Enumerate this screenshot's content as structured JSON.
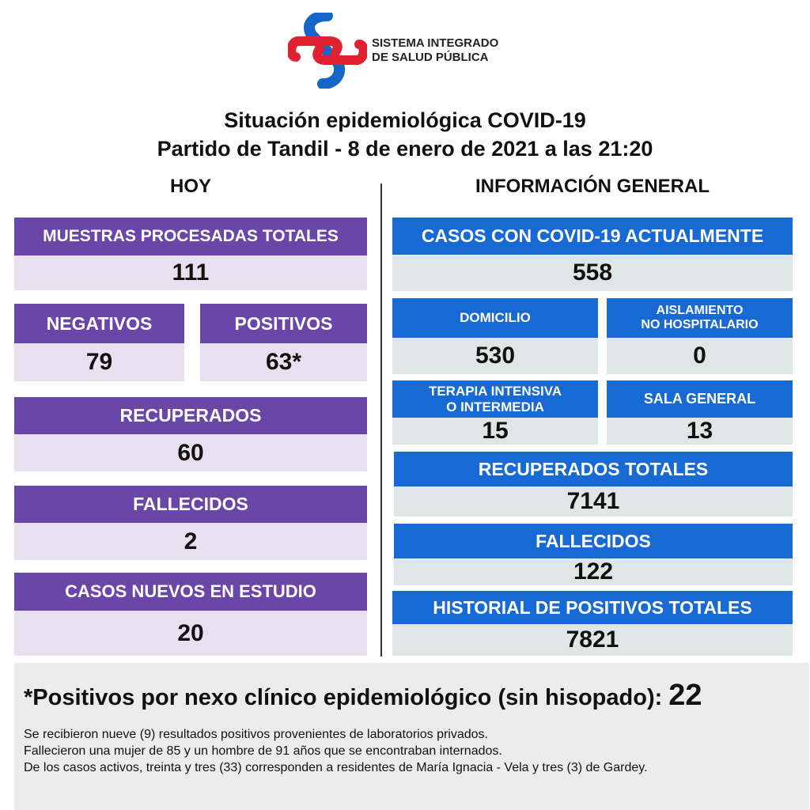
{
  "header": {
    "org_line1": "SISTEMA INTEGRADO",
    "org_line2": "DE SALUD PÚBLICA",
    "title_line1": "Situación epidemiológica COVID-19",
    "title_line2": "Partido de Tandil - 8 de enero de 2021 a las 21:20"
  },
  "colors": {
    "purple": "#6a46a8",
    "blue": "#1769d3",
    "logo_blue": "#1466c8",
    "logo_red": "#e0212f"
  },
  "hoy": {
    "heading": "HOY",
    "muestras": {
      "label": "MUESTRAS PROCESADAS TOTALES",
      "value": "111"
    },
    "negativos": {
      "label": "NEGATIVOS",
      "value": "79"
    },
    "positivos": {
      "label": "POSITIVOS",
      "value": "63*"
    },
    "recuperados": {
      "label": "RECUPERADOS",
      "value": "60"
    },
    "fallecidos": {
      "label": "FALLECIDOS",
      "value": "2"
    },
    "nuevos": {
      "label": "CASOS NUEVOS EN ESTUDIO",
      "value": "20"
    }
  },
  "general": {
    "heading": "INFORMACIÓN GENERAL",
    "actuales": {
      "label": "CASOS CON COVID-19 ACTUALMENTE",
      "value": "558"
    },
    "domicilio": {
      "label": "DOMICILIO",
      "value": "530"
    },
    "aislamiento": {
      "label_line1": "AISLAMIENTO",
      "label_line2": "NO HOSPITALARIO",
      "value": "0"
    },
    "terapia": {
      "label_line1": "TERAPIA INTENSIVA",
      "label_line2": "O INTERMEDIA",
      "value": "15"
    },
    "sala": {
      "label": "SALA GENERAL",
      "value": "13"
    },
    "recuperados": {
      "label": "RECUPERADOS TOTALES",
      "value": "7141"
    },
    "fallecidos": {
      "label": "FALLECIDOS",
      "value": "122"
    },
    "historial": {
      "label": "HISTORIAL DE POSITIVOS TOTALES",
      "value": "7821"
    }
  },
  "footer": {
    "nexo_label": "*Positivos por nexo clínico epidemiológico (sin hisopado):",
    "nexo_value": "22",
    "notes": [
      "Se recibieron nueve (9) resultados positivos provenientes de laboratorios privados.",
      "Fallecieron una mujer de 85  y un hombre de 91 años que se encontraban internados.",
      "De los casos activos, treinta y tres (33) corresponden a residentes de María Ignacia - Vela y tres (3) de Gardey."
    ]
  }
}
